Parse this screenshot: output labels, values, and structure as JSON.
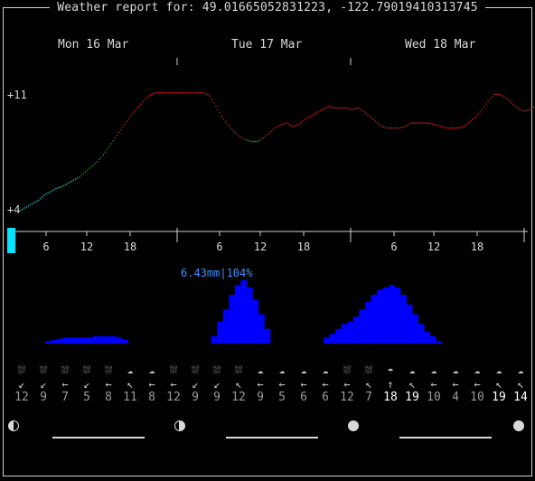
{
  "title": "Weather report for: 49.01665052831223, -122.79019410313745",
  "days": [
    "Mon 16 Mar",
    "Tue 17 Mar",
    "Wed 18 Mar"
  ],
  "temp_labels": {
    "max": "+11",
    "min": "+4"
  },
  "hour_ticks": [
    "6",
    "12",
    "18",
    "6",
    "12",
    "18",
    "6",
    "12",
    "18"
  ],
  "precip_summary": "6.43mm|104%",
  "colors": {
    "bg": "#000000",
    "frame": "#d0d0d0",
    "precip": "#0000ff",
    "precip_text": "#3f8fff",
    "now_marker": "#00e5ff"
  },
  "wind": [
    {
      "icon": "cloud-rain-icon",
      "dir": "↙",
      "speed": "12",
      "dim": true
    },
    {
      "icon": "cloud-rain-icon",
      "dir": "↙",
      "speed": "9",
      "dim": true
    },
    {
      "icon": "cloud-rain-icon",
      "dir": "←",
      "speed": "7",
      "dim": true
    },
    {
      "icon": "cloud-rain-icon",
      "dir": "↙",
      "speed": "5",
      "dim": true
    },
    {
      "icon": "cloud-rain-icon",
      "dir": "←",
      "speed": "8",
      "dim": true
    },
    {
      "icon": "cloud-icon",
      "dir": "↖",
      "speed": "11",
      "dim": true
    },
    {
      "icon": "cloud-icon",
      "dir": "←",
      "speed": "8",
      "dim": true
    },
    {
      "icon": "cloud-rain-icon",
      "dir": "←",
      "speed": "12",
      "dim": true
    },
    {
      "icon": "cloud-rain-icon",
      "dir": "↙",
      "speed": "9",
      "dim": true
    },
    {
      "icon": "cloud-rain-icon",
      "dir": "↙",
      "speed": "9",
      "dim": true
    },
    {
      "icon": "cloud-rain-icon",
      "dir": "↖",
      "speed": "12",
      "dim": true
    },
    {
      "icon": "cloud-icon",
      "dir": "←",
      "speed": "9",
      "dim": true
    },
    {
      "icon": "cloud-icon",
      "dir": "←",
      "speed": "5",
      "dim": true
    },
    {
      "icon": "cloud-icon",
      "dir": "←",
      "speed": "6",
      "dim": true
    },
    {
      "icon": "cloud-icon",
      "dir": "←",
      "speed": "6",
      "dim": true
    },
    {
      "icon": "cloud-rain-icon",
      "dir": "←",
      "speed": "12",
      "dim": true
    },
    {
      "icon": "cloud-rain-icon",
      "dir": "↖",
      "speed": "7",
      "dim": true
    },
    {
      "icon": "rain-icon",
      "dir": "↑",
      "speed": "18",
      "dim": false
    },
    {
      "icon": "cloud-icon",
      "dir": "↖",
      "speed": "19",
      "dim": false
    },
    {
      "icon": "cloud-icon",
      "dir": "←",
      "speed": "10",
      "dim": true
    },
    {
      "icon": "cloud-icon",
      "dir": "←",
      "speed": "4",
      "dim": true
    },
    {
      "icon": "cloud-icon",
      "dir": "←",
      "speed": "10",
      "dim": true
    },
    {
      "icon": "cloud-icon",
      "dir": "↖",
      "speed": "19",
      "dim": false
    },
    {
      "icon": "cloud-icon",
      "dir": "↖",
      "speed": "14",
      "dim": false
    }
  ],
  "chart_data": {
    "type": "line",
    "x_unit": "hour from Mon 16 Mar 00:00",
    "temperature": [
      4.0,
      4.2,
      4.4,
      4.6,
      4.9,
      5.1,
      5.3,
      5.4,
      5.6,
      5.8,
      6.0,
      6.3,
      6.6,
      6.9,
      7.3,
      7.8,
      8.3,
      8.8,
      9.3,
      9.8,
      10.2,
      10.6,
      10.9,
      11.0,
      11.0,
      11.0,
      11.0,
      11.0,
      11.0,
      11.0,
      11.0,
      11.0,
      10.8,
      10.2,
      9.6,
      9.1,
      8.7,
      8.4,
      8.2,
      8.1,
      8.1,
      8.3,
      8.6,
      8.9,
      9.1,
      9.2,
      9.0,
      9.1,
      9.4,
      9.6,
      9.8,
      10.0,
      10.2,
      10.1,
      10.1,
      10.1,
      10.0,
      10.1,
      9.9,
      9.6,
      9.3,
      9.0,
      8.9,
      8.9,
      8.9,
      9.0,
      9.2,
      9.2,
      9.2,
      9.2,
      9.1,
      9.0,
      8.9,
      8.9,
      8.9,
      9.0,
      9.3,
      9.6,
      10.0,
      10.5,
      10.9,
      10.9,
      10.7,
      10.4,
      10.1,
      9.9,
      10.0,
      10.2
    ],
    "precip_mm": [
      0,
      0,
      0,
      0,
      0.1,
      0.15,
      0.2,
      0.25,
      0.25,
      0.25,
      0.25,
      0.25,
      0.3,
      0.3,
      0.3,
      0.3,
      0.25,
      0.15,
      0,
      0,
      0,
      0,
      0,
      0,
      0,
      0,
      0,
      0,
      0,
      0,
      0,
      0,
      0.3,
      0.9,
      1.4,
      2.0,
      2.4,
      2.6,
      2.3,
      1.8,
      1.2,
      0.6,
      0,
      0,
      0,
      0,
      0,
      0,
      0,
      0,
      0,
      0.25,
      0.4,
      0.6,
      0.8,
      0.9,
      1.1,
      1.4,
      1.7,
      2.0,
      2.2,
      2.3,
      2.4,
      2.3,
      2.0,
      1.6,
      1.2,
      0.8,
      0.5,
      0.3,
      0.1,
      0,
      0,
      0,
      0,
      0,
      0,
      0,
      0,
      0,
      0,
      0,
      0,
      0,
      0,
      0,
      0,
      0
    ],
    "temp_range": [
      4,
      11
    ]
  }
}
